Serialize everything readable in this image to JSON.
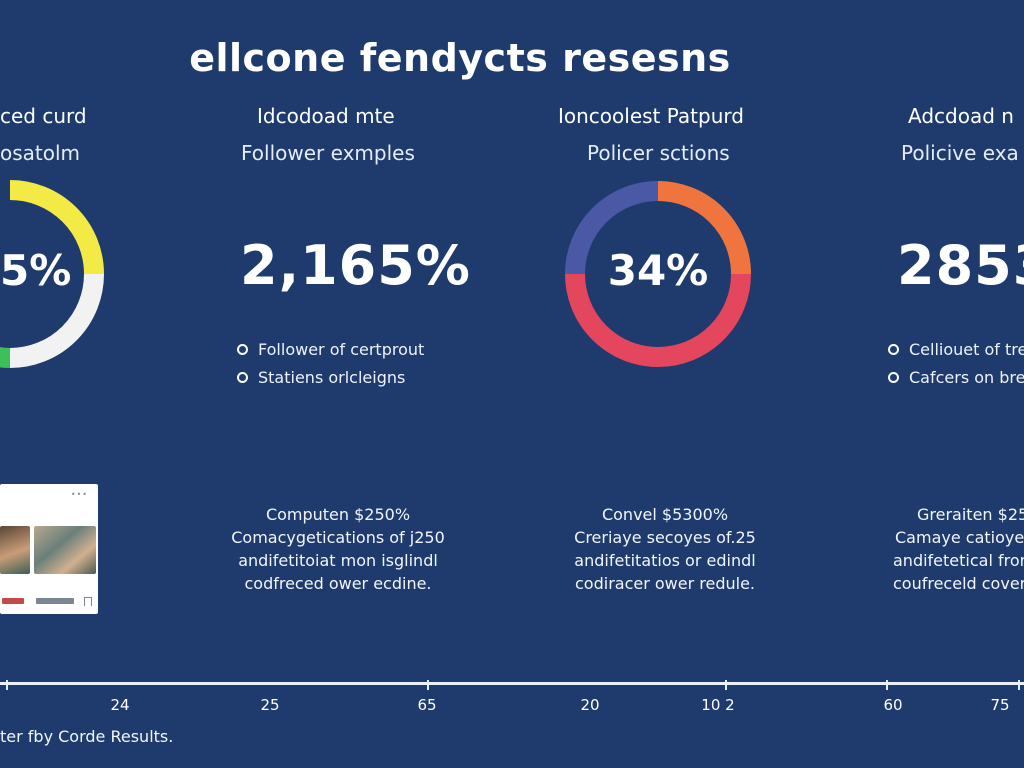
{
  "page": {
    "title": "ellcone fendycts resesns",
    "footer": "ter fby Corde Results.",
    "colors": {
      "background": "#1f3b6e",
      "yellow": "#f4ea45",
      "green": "#3fbf5a",
      "orange": "#f0743e",
      "indigo": "#4b58a5",
      "red": "#e4465e",
      "white_ring": "#f2f2f2"
    }
  },
  "cards": [
    {
      "heading": "ced curd",
      "sub": "osatolm",
      "value": "5%",
      "donut": {
        "segments": [
          "yellow",
          "white",
          "green"
        ]
      },
      "thumbnail_icons": [
        "more-dots-icon",
        "photo-icon",
        "bookmark-icon"
      ]
    },
    {
      "heading": "Idcodoad mte",
      "sub": "Follower exmples",
      "value": "2,165%",
      "bullets": [
        "Follower of certprout",
        "Statiens orlcleigns"
      ],
      "desc": [
        "Computen $250%",
        "Comacygetications of j250",
        "andifetitoiat mon isglindl",
        "codfreced ower ecdine."
      ]
    },
    {
      "heading": "Ioncoolest Patpurd",
      "sub": "Policer sctions",
      "value": "34%",
      "donut": {
        "segments": [
          "orange",
          "red",
          "indigo"
        ]
      },
      "desc": [
        "Convel $5300%",
        "Creriaye secoyes of.25",
        "andifetitatios or edindl",
        "codiracer ower redule."
      ]
    },
    {
      "heading": "Adcdoad n",
      "sub": "Policive exa",
      "value": "2853",
      "bullets": [
        "Celliouet of tre",
        "Cafcers on bre"
      ],
      "desc": [
        "Greraiten $25",
        "Camaye catioyes",
        "andifetetical from",
        "coufreceld cover"
      ]
    }
  ],
  "axis": {
    "ticks": [
      "24",
      "25",
      "65",
      "20",
      "10 2",
      "60",
      "75"
    ]
  }
}
